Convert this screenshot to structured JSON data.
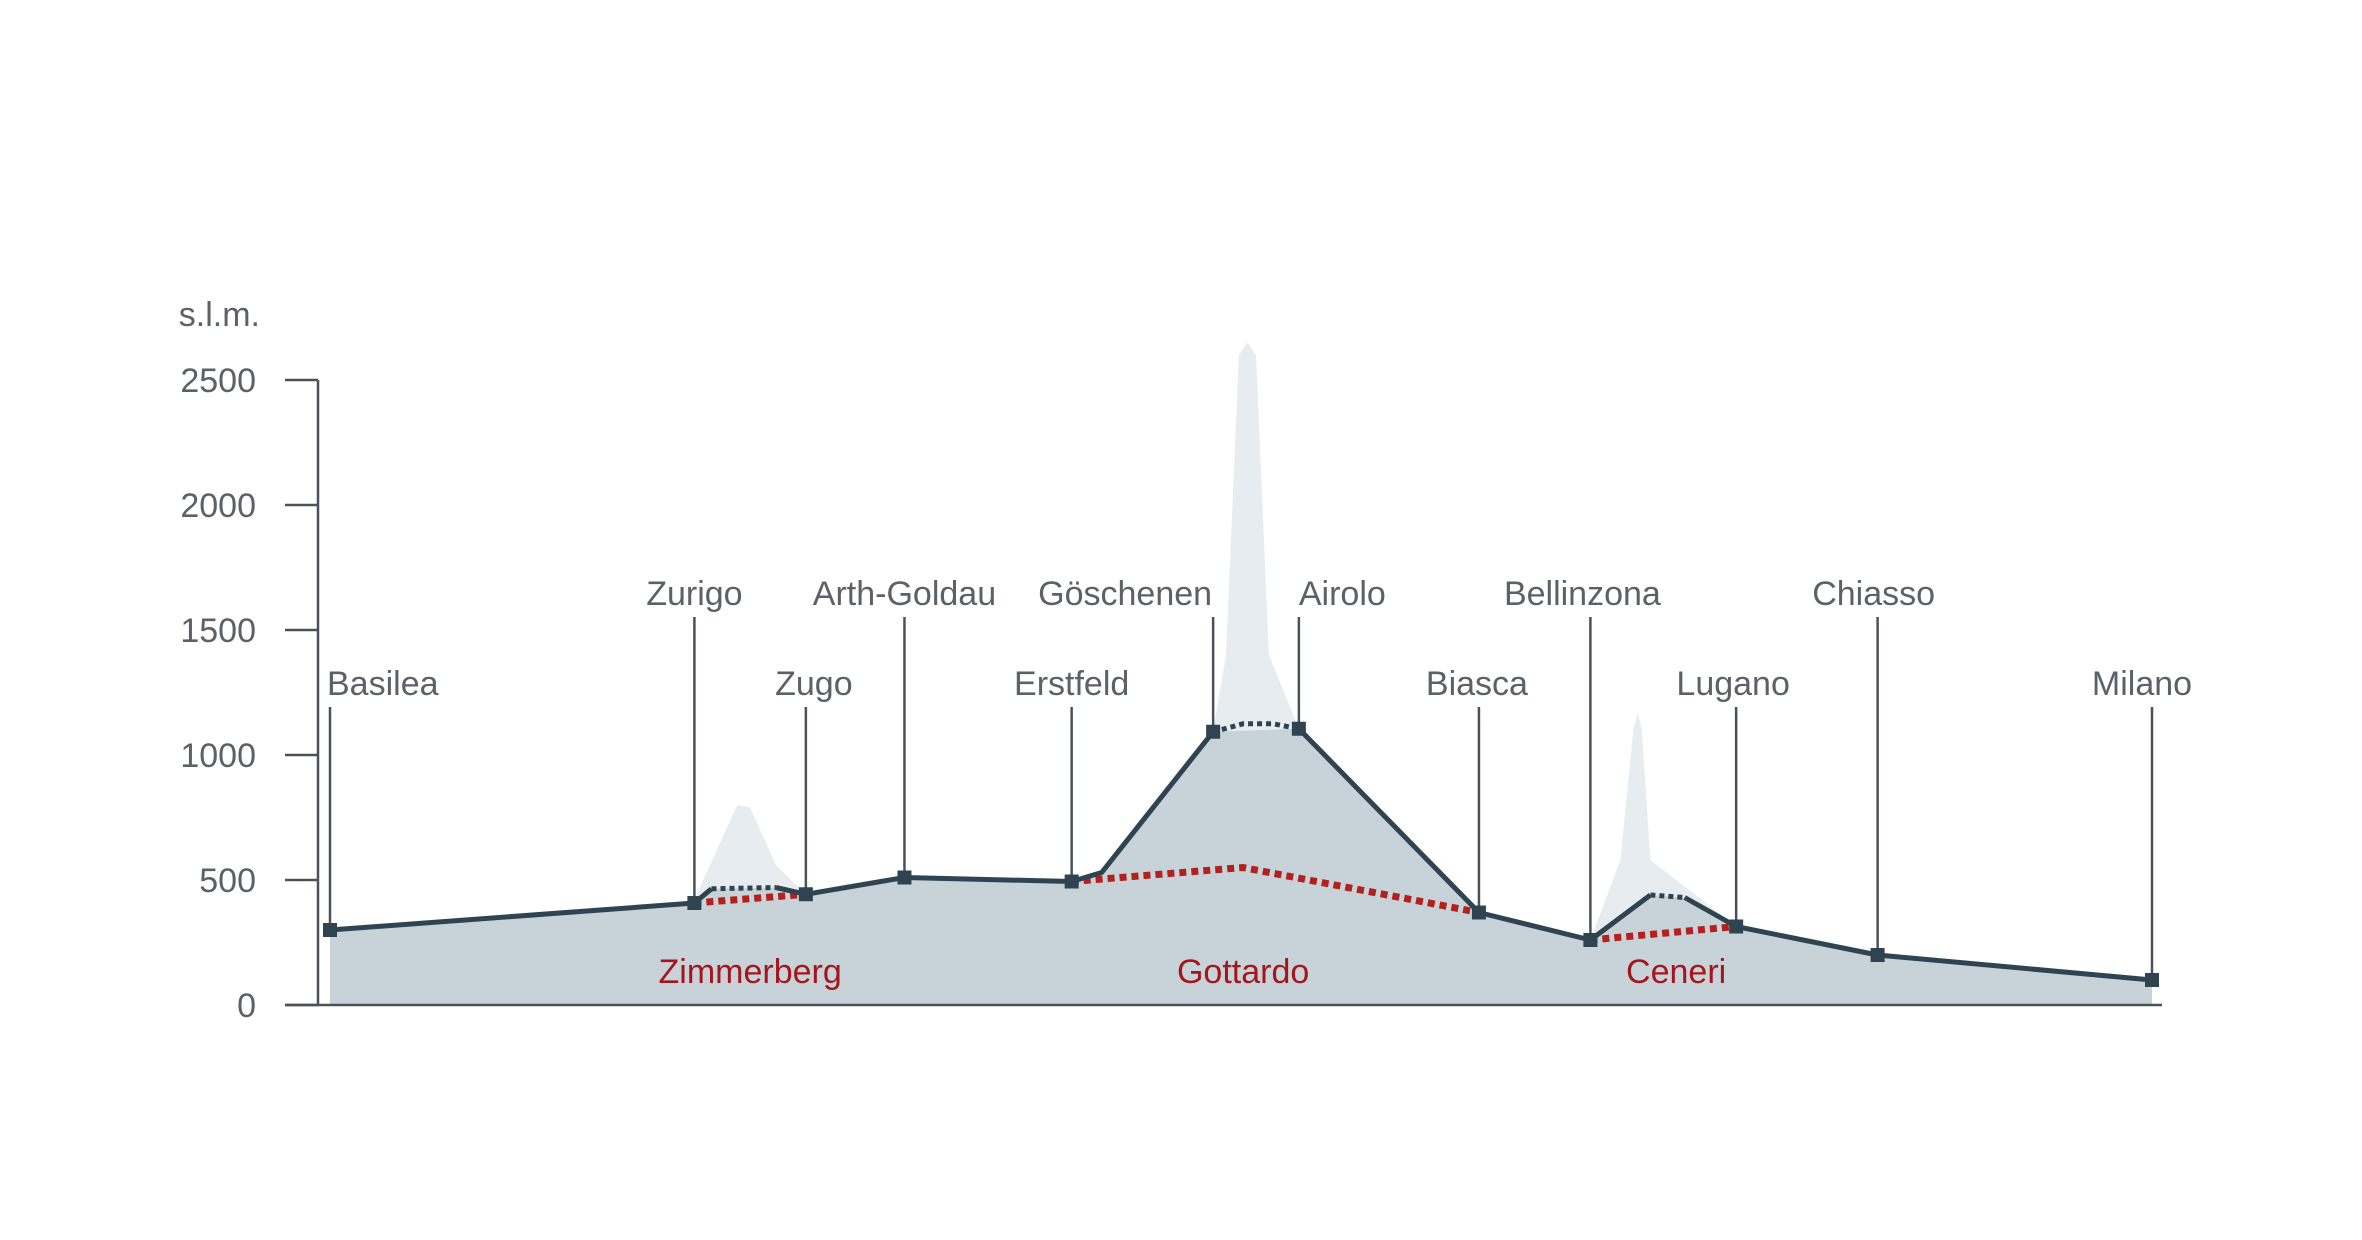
{
  "chart_data": {
    "type": "area",
    "title": "",
    "xlabel": "",
    "ylabel": "s.l.m.",
    "ylim": [
      0,
      2500
    ],
    "yticks": [
      0,
      500,
      1000,
      1500,
      2000,
      2500
    ],
    "grid": false,
    "legend": "none",
    "colors": {
      "ground": "#c8d3d9",
      "mountain": "#e6ecef",
      "old_line": "#2f4450",
      "base_tunnel": "#b3201d",
      "text": "#5b6166",
      "tunnel_text": "#a3161c"
    },
    "stations": [
      {
        "name": "Basilea",
        "km": 0,
        "elevation": 300
      },
      {
        "name": "Zurigo",
        "km": 85,
        "elevation": 408
      },
      {
        "name": "Zugo",
        "km": 111,
        "elevation": 443
      },
      {
        "name": "Arth-Goldau",
        "km": 134,
        "elevation": 510
      },
      {
        "name": "Erstfeld",
        "km": 173,
        "elevation": 494
      },
      {
        "name": "Göschenen",
        "km": 206,
        "elevation": 1093
      },
      {
        "name": "Airolo",
        "km": 226,
        "elevation": 1105
      },
      {
        "name": "Biasca",
        "km": 268,
        "elevation": 370
      },
      {
        "name": "Bellinzona",
        "km": 294,
        "elevation": 260
      },
      {
        "name": "Lugano",
        "km": 328,
        "elevation": 314
      },
      {
        "name": "Chiasso",
        "km": 361,
        "elevation": 200
      },
      {
        "name": "Milano",
        "km": 425,
        "elevation": 100
      }
    ],
    "terrain": [
      {
        "km": 0,
        "elevation": 300
      },
      {
        "km": 85,
        "elevation": 408
      },
      {
        "km": 86,
        "elevation": 460
      },
      {
        "km": 95,
        "elevation": 800
      },
      {
        "km": 98,
        "elevation": 790
      },
      {
        "km": 104,
        "elevation": 560
      },
      {
        "km": 111,
        "elevation": 443
      },
      {
        "km": 134,
        "elevation": 510
      },
      {
        "km": 173,
        "elevation": 494
      },
      {
        "km": 180,
        "elevation": 530
      },
      {
        "km": 206,
        "elevation": 1093
      },
      {
        "km": 209,
        "elevation": 1400
      },
      {
        "km": 212,
        "elevation": 2600
      },
      {
        "km": 214,
        "elevation": 2650
      },
      {
        "km": 216,
        "elevation": 2600
      },
      {
        "km": 219,
        "elevation": 1400
      },
      {
        "km": 226,
        "elevation": 1105
      },
      {
        "km": 268,
        "elevation": 370
      },
      {
        "km": 294,
        "elevation": 260
      },
      {
        "km": 301,
        "elevation": 580
      },
      {
        "km": 304,
        "elevation": 1100
      },
      {
        "km": 305,
        "elevation": 1170
      },
      {
        "km": 306,
        "elevation": 1100
      },
      {
        "km": 308,
        "elevation": 580
      },
      {
        "km": 328,
        "elevation": 314
      },
      {
        "km": 361,
        "elevation": 200
      },
      {
        "km": 425,
        "elevation": 100
      }
    ],
    "old_line": [
      {
        "km": 0,
        "elevation": 300
      },
      {
        "km": 85,
        "elevation": 408
      },
      {
        "km": 89,
        "elevation": 465
      },
      {
        "km": 104,
        "elevation": 470
      },
      {
        "km": 111,
        "elevation": 443
      },
      {
        "km": 134,
        "elevation": 510
      },
      {
        "km": 173,
        "elevation": 494
      },
      {
        "km": 180,
        "elevation": 530
      },
      {
        "km": 206,
        "elevation": 1093
      },
      {
        "km": 226,
        "elevation": 1105
      },
      {
        "km": 268,
        "elevation": 370
      },
      {
        "km": 294,
        "elevation": 260
      },
      {
        "km": 308,
        "elevation": 440
      },
      {
        "km": 316,
        "elevation": 430
      },
      {
        "km": 328,
        "elevation": 314
      },
      {
        "km": 361,
        "elevation": 200
      },
      {
        "km": 425,
        "elevation": 100
      }
    ],
    "old_tunnels": [
      [
        {
          "km": 89,
          "elevation": 465
        },
        {
          "km": 104,
          "elevation": 470
        }
      ],
      [
        {
          "km": 206,
          "elevation": 1093
        },
        {
          "km": 213,
          "elevation": 1125
        },
        {
          "km": 220,
          "elevation": 1125
        },
        {
          "km": 226,
          "elevation": 1105
        }
      ],
      [
        {
          "km": 308,
          "elevation": 440
        },
        {
          "km": 316,
          "elevation": 430
        }
      ]
    ],
    "base_tunnels": [
      {
        "name": "Zimmerberg",
        "points": [
          {
            "km": 85,
            "elevation": 408
          },
          {
            "km": 111,
            "elevation": 443
          }
        ]
      },
      {
        "name": "Gottardo",
        "points": [
          {
            "km": 173,
            "elevation": 494
          },
          {
            "km": 213,
            "elevation": 550
          },
          {
            "km": 268,
            "elevation": 370
          }
        ]
      },
      {
        "name": "Ceneri",
        "points": [
          {
            "km": 294,
            "elevation": 260
          },
          {
            "km": 328,
            "elevation": 314
          }
        ]
      }
    ]
  }
}
